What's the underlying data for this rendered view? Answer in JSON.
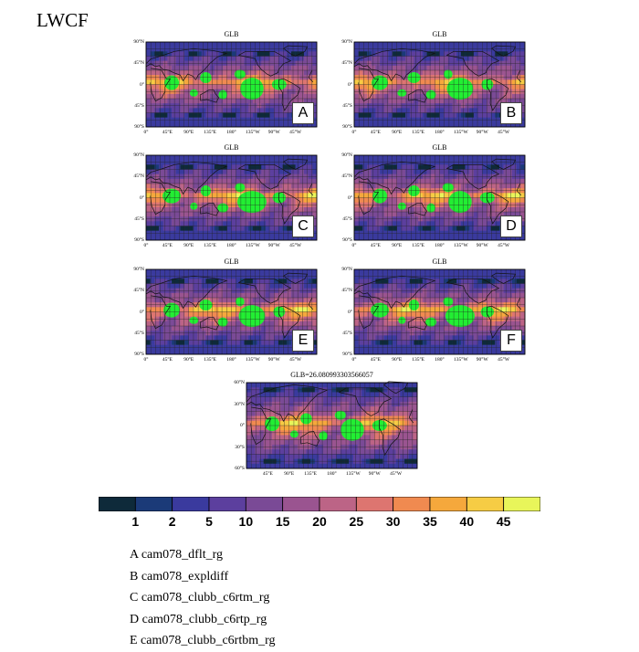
{
  "figure": {
    "title": "LWCF"
  },
  "chart_data": [
    {
      "type": "heatmap",
      "panel": "A",
      "title": "GLB",
      "letter": "A",
      "yticks": [
        "90°N",
        "45°N",
        "0°",
        "45°S",
        "90°S"
      ],
      "xticks": [
        "0°",
        "45°E",
        "90°E",
        "135°E",
        "180°",
        "135°W",
        "90°W",
        "45°W"
      ]
    },
    {
      "type": "heatmap",
      "panel": "B",
      "title": "GLB",
      "letter": "B",
      "yticks": [
        "90°N",
        "45°N",
        "0°",
        "45°S",
        "90°S"
      ],
      "xticks": [
        "0°",
        "45°E",
        "90°E",
        "135°E",
        "180°",
        "135°W",
        "90°W",
        "45°W"
      ]
    },
    {
      "type": "heatmap",
      "panel": "C",
      "title": "GLB",
      "letter": "C",
      "yticks": [
        "90°N",
        "45°N",
        "0°",
        "45°S",
        "90°S"
      ],
      "xticks": [
        "0°",
        "45°E",
        "90°E",
        "135°E",
        "180°",
        "135°W",
        "90°W",
        "45°W"
      ]
    },
    {
      "type": "heatmap",
      "panel": "D",
      "title": "GLB",
      "letter": "D",
      "yticks": [
        "90°N",
        "45°N",
        "0°",
        "45°S",
        "90°S"
      ],
      "xticks": [
        "0°",
        "45°E",
        "90°E",
        "135°E",
        "180°",
        "135°W",
        "90°W",
        "45°W"
      ]
    },
    {
      "type": "heatmap",
      "panel": "E",
      "title": "GLB",
      "letter": "E",
      "yticks": [
        "90°N",
        "45°N",
        "0°",
        "45°S",
        "90°S"
      ],
      "xticks": [
        "0°",
        "45°E",
        "90°E",
        "135°E",
        "180°",
        "135°W",
        "90°W",
        "45°W"
      ]
    },
    {
      "type": "heatmap",
      "panel": "F",
      "title": "GLB",
      "letter": "F",
      "yticks": [
        "90°N",
        "45°N",
        "0°",
        "45°S",
        "90°S"
      ],
      "xticks": [
        "0°",
        "45°E",
        "90°E",
        "135°E",
        "180°",
        "135°W",
        "90°W",
        "45°W"
      ]
    },
    {
      "type": "heatmap",
      "panel": "G",
      "title": "GLB=26.080993303566057",
      "letter": "",
      "yticks": [
        "60°N",
        "30°N",
        "0°",
        "30°S",
        "60°S"
      ],
      "xticks": [
        "45°E",
        "90°E",
        "135°E",
        "180°",
        "135°W",
        "90°W",
        "45°W"
      ]
    }
  ],
  "colorbar": {
    "levels": [
      "1",
      "2",
      "5",
      "10",
      "15",
      "20",
      "25",
      "30",
      "35",
      "40",
      "45"
    ],
    "colors": [
      "#0e2a3a",
      "#1b3a78",
      "#3a3a9e",
      "#5c3f9e",
      "#7a4a96",
      "#9a5490",
      "#bc6486",
      "#dd7570",
      "#f08a50",
      "#f5a83c",
      "#f6cc44",
      "#e8f55a"
    ]
  },
  "legend": [
    "A  cam078_dflt_rg",
    "B  cam078_expldiff",
    "C  cam078_clubb_c6rtm_rg",
    "D  cam078_clubb_c6rtp_rg",
    "E  cam078_clubb_c6rtbm_rg"
  ]
}
